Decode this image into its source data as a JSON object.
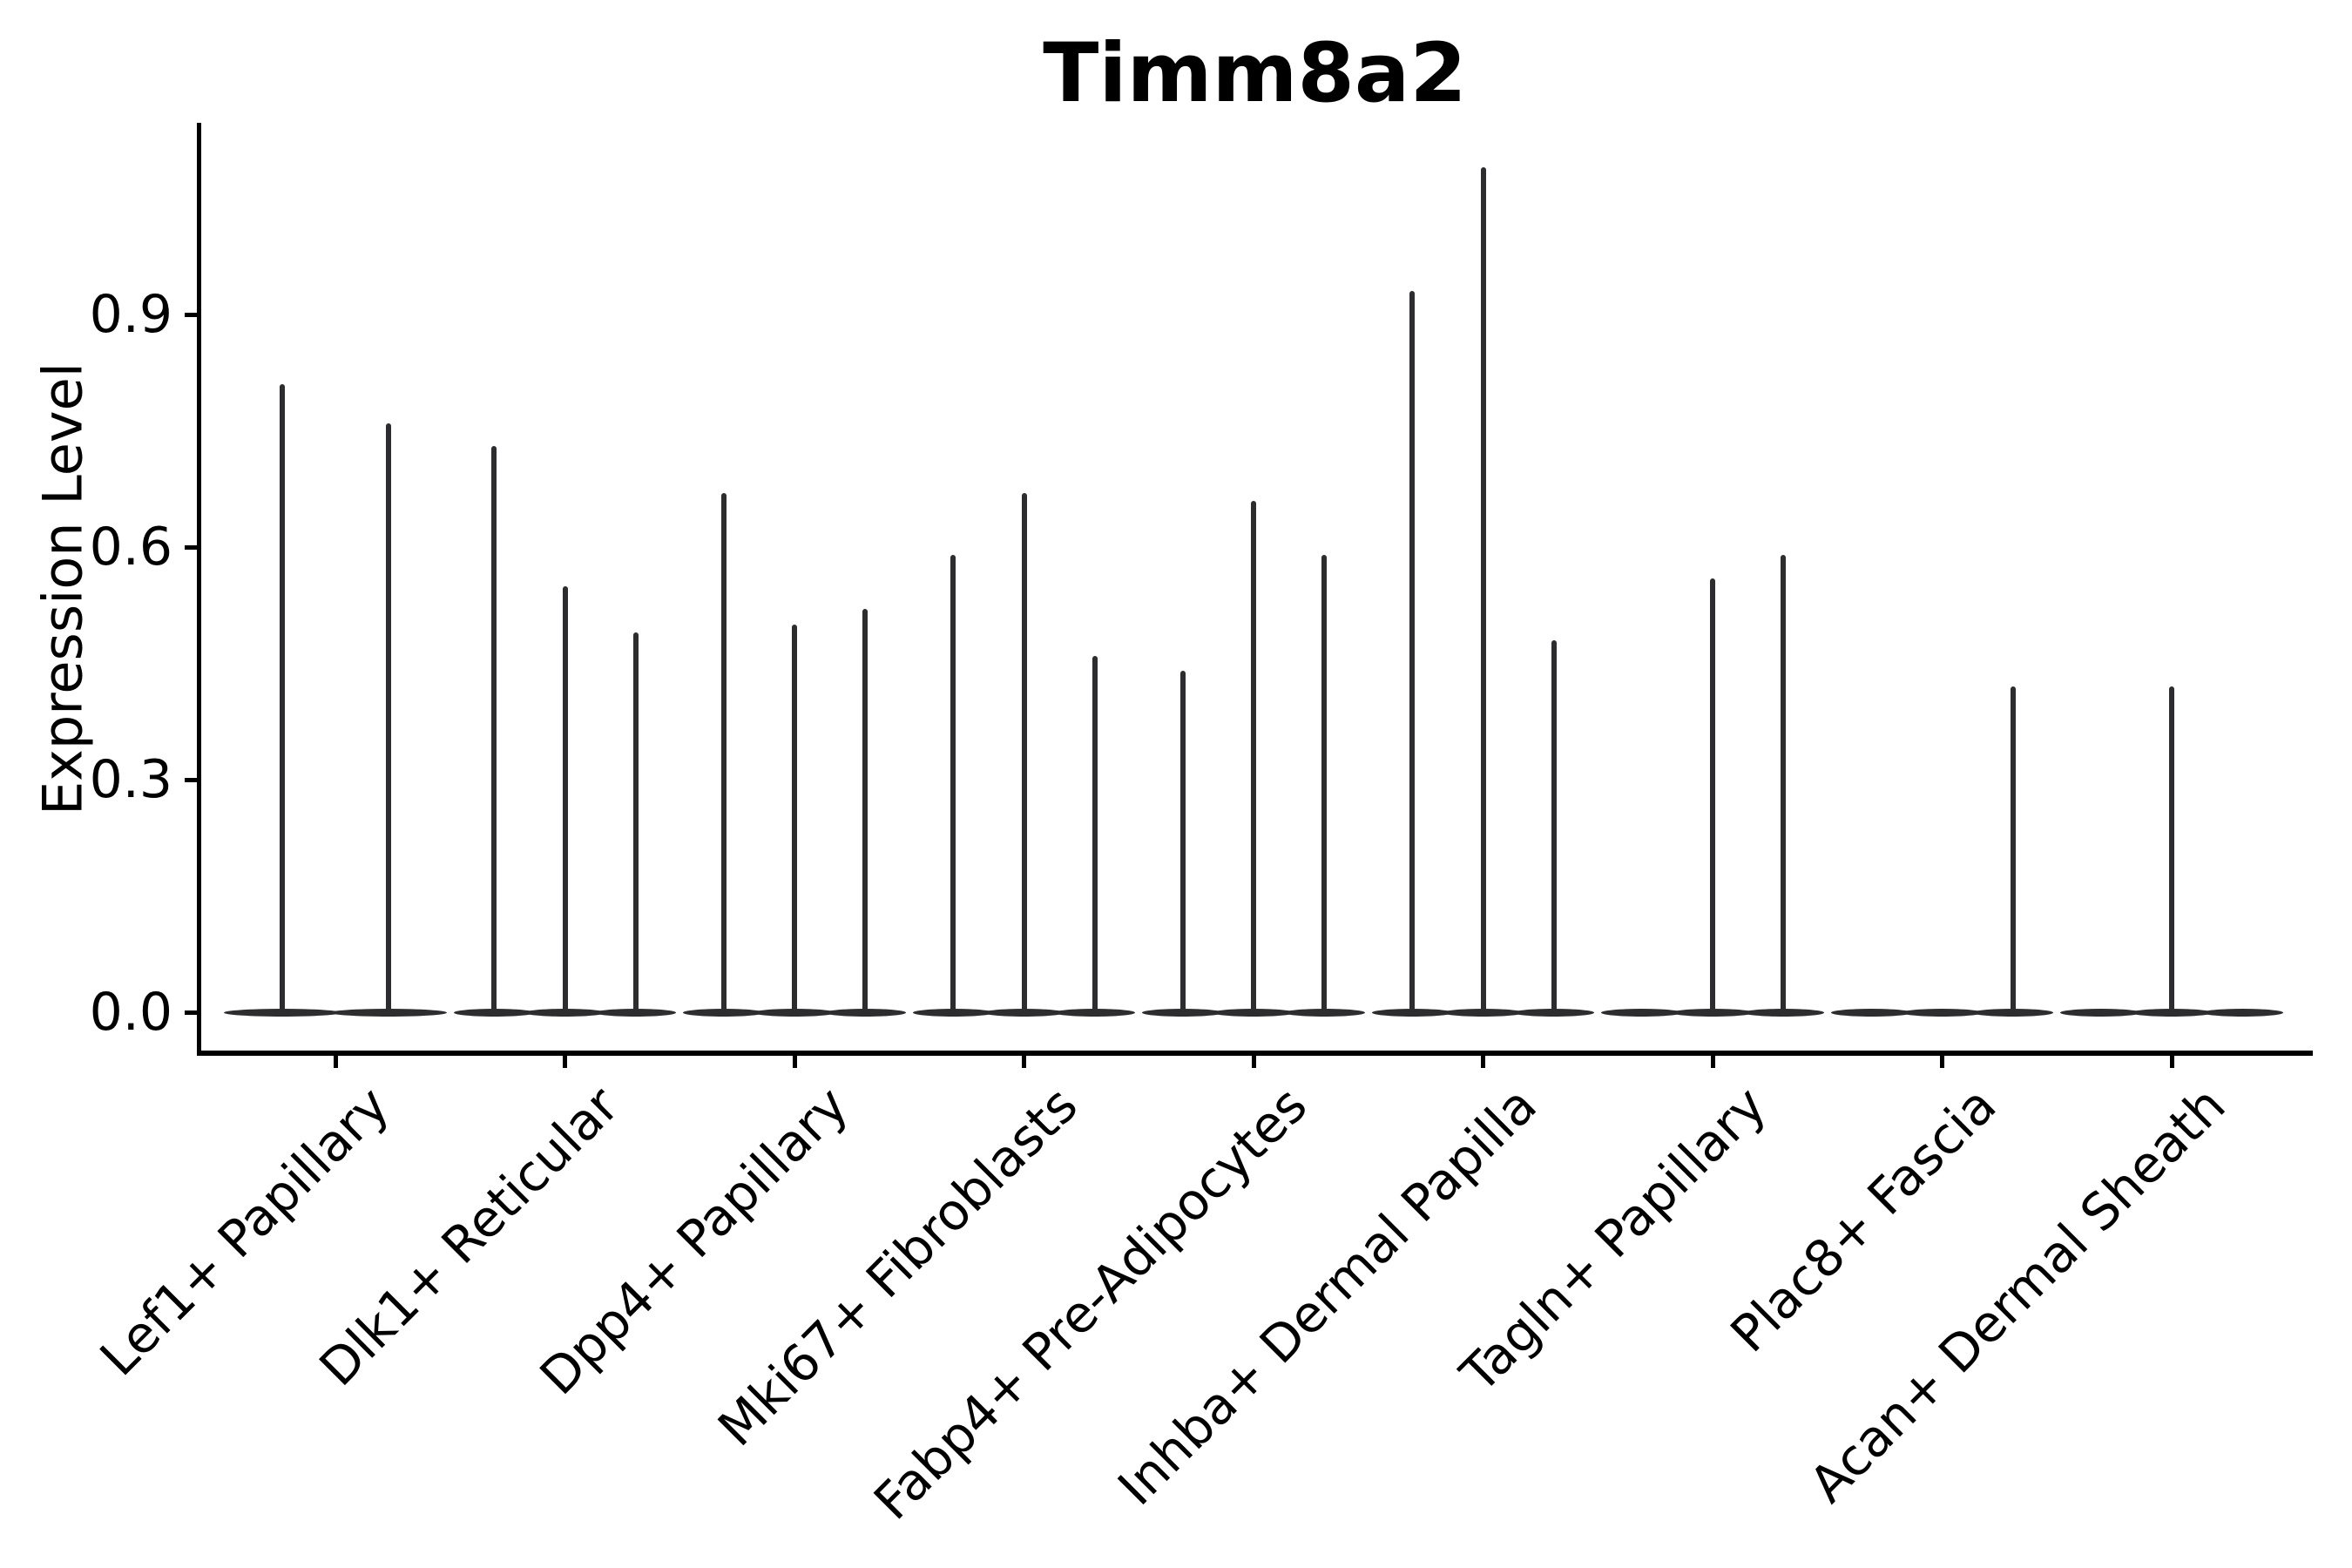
{
  "chart_data": {
    "type": "violin",
    "title": "Timm8a2",
    "ylabel": "Expression Level",
    "xlabel": "",
    "yticks": [
      0.0,
      0.3,
      0.6,
      0.9
    ],
    "ylim": [
      -0.05,
      1.15
    ],
    "grid": false,
    "legend_position": "none",
    "violin_color": "#2d2d30",
    "axis_color": "#000000",
    "background_color": "#ffffff",
    "categories": [
      "Lef1+ Papillary",
      "Dlk1+ Reticular",
      "Dpp4+ Papillary",
      "Mki67+ Fibroblasts",
      "Fabp4+ Pre-Adipocytes",
      "Inhba+ Dermal Papilla",
      "Tagln+ Papillary",
      "Plac8+ Fascia",
      "Acan+ Dermal Sheath"
    ],
    "groups": [
      {
        "category": "Lef1+ Papillary",
        "violin_max_values": [
          0.81,
          0.76
        ]
      },
      {
        "category": "Dlk1+ Reticular",
        "violin_max_values": [
          0.73,
          0.55,
          0.49
        ]
      },
      {
        "category": "Dpp4+ Papillary",
        "violin_max_values": [
          0.67,
          0.5,
          0.52
        ]
      },
      {
        "category": "Mki67+ Fibroblasts",
        "violin_max_values": [
          0.59,
          0.67,
          0.46
        ]
      },
      {
        "category": "Fabp4+ Pre-Adipocytes",
        "violin_max_values": [
          0.44,
          0.66,
          0.59
        ]
      },
      {
        "category": "Inhba+ Dermal Papilla",
        "violin_max_values": [
          0.93,
          1.09,
          0.48
        ]
      },
      {
        "category": "Tagln+ Papillary",
        "violin_max_values": [
          0.0,
          0.56,
          0.59
        ]
      },
      {
        "category": "Plac8+ Fascia",
        "violin_max_values": [
          0.0,
          0.0,
          0.42
        ]
      },
      {
        "category": "Acan+ Dermal Sheath",
        "violin_max_values": [
          0.0,
          0.42,
          0.0
        ]
      }
    ]
  }
}
